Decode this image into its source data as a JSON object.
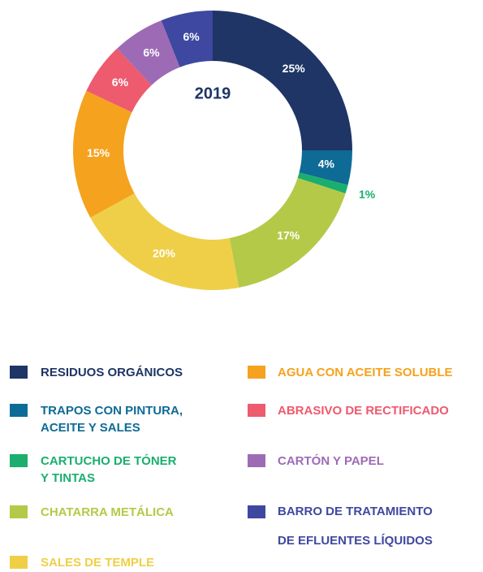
{
  "chart_data": {
    "type": "donut",
    "title": "2019",
    "categories": [
      "RESIDUOS ORGÁNICOS",
      "TRAPOS CON PINTURA,\nACEITE Y SALES",
      "CARTUCHO DE TÓNER\nY TINTAS",
      "CHATARRA METÁLICA",
      "SALES DE TEMPLE",
      "AGUA CON ACEITE SOLUBLE",
      "ABRASIVO DE RECTIFICADO",
      "CARTÓN Y PAPEL",
      "BARRO DE TRATAMIENTO\nDE EFLUENTES LÍQUIDOS"
    ],
    "values": [
      25,
      4,
      1,
      17,
      20,
      15,
      6,
      6,
      6
    ],
    "value_labels": [
      "25%",
      "4%",
      "1%",
      "17%",
      "20%",
      "15%",
      "6%",
      "6%",
      "6%"
    ],
    "colors": [
      "#1e3566",
      "#0e6b95",
      "#1aae6f",
      "#b5c948",
      "#efcf47",
      "#f5a21e",
      "#ee5a6e",
      "#9d6bb5",
      "#3f48a0"
    ]
  }
}
